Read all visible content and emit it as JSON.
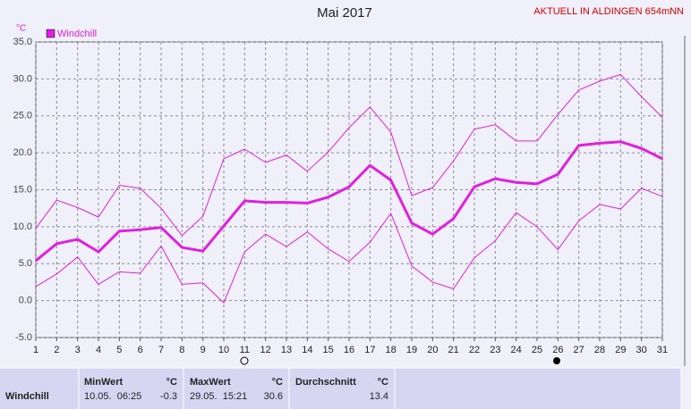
{
  "chart_data": {
    "type": "line",
    "title": "Mai 2017",
    "subtitle": "AKTUELL IN ALDINGEN 654mNN",
    "y_label": "°C",
    "x": [
      1,
      2,
      3,
      4,
      5,
      6,
      7,
      8,
      9,
      10,
      11,
      12,
      13,
      14,
      15,
      16,
      17,
      18,
      19,
      20,
      21,
      22,
      23,
      24,
      25,
      26,
      27,
      28,
      29,
      30,
      31
    ],
    "xlim": [
      1,
      31
    ],
    "xticks": [
      1,
      2,
      3,
      4,
      5,
      6,
      7,
      8,
      9,
      10,
      11,
      12,
      13,
      14,
      15,
      16,
      17,
      18,
      19,
      20,
      21,
      22,
      23,
      24,
      25,
      26,
      27,
      28,
      29,
      30,
      31
    ],
    "ylim": [
      -5,
      35
    ],
    "yticks": [
      {
        "value": -5,
        "label": "-5.0"
      },
      {
        "value": 0,
        "label": "0.0"
      },
      {
        "value": 5,
        "label": "5.0"
      },
      {
        "value": 10,
        "label": "10.0"
      },
      {
        "value": 15,
        "label": "15.0"
      },
      {
        "value": 20,
        "label": "20.0"
      },
      {
        "value": 25,
        "label": "25.0"
      },
      {
        "value": 30,
        "label": "30.0"
      },
      {
        "value": 35,
        "label": "35.0"
      }
    ],
    "grid": true,
    "legend": "top-left",
    "series": [
      {
        "name": "Windchill",
        "color": "#e020e0",
        "values": [
          5.4,
          7.7,
          8.3,
          6.6,
          9.4,
          9.6,
          9.9,
          7.2,
          6.7,
          10.1,
          13.5,
          13.3,
          13.3,
          13.2,
          14.0,
          15.4,
          18.3,
          16.3,
          10.5,
          9.0,
          11.1,
          15.4,
          16.5,
          16.0,
          15.8,
          17.1,
          21.0,
          21.3,
          21.5,
          20.6,
          19.2
        ]
      },
      {
        "color": "#e020e0",
        "values": [
          9.8,
          13.6,
          12.6,
          11.3,
          15.6,
          15.2,
          12.5,
          8.8,
          11.4,
          19.2,
          20.5,
          18.7,
          19.7,
          17.5,
          20.1,
          23.4,
          26.2,
          22.8,
          14.2,
          15.3,
          18.9,
          23.2,
          23.8,
          21.6,
          21.6,
          25.2,
          28.5,
          29.7,
          30.6,
          27.6,
          24.8
        ]
      },
      {
        "color": "#e020e0",
        "values": [
          1.9,
          3.6,
          5.9,
          2.2,
          3.9,
          3.7,
          7.4,
          2.2,
          2.4,
          -0.3,
          6.6,
          9.0,
          7.3,
          9.3,
          7.0,
          5.3,
          7.9,
          11.8,
          4.7,
          2.5,
          1.6,
          5.8,
          8.1,
          11.9,
          10.0,
          6.9,
          10.8,
          13.0,
          12.4,
          15.2,
          14.1
        ]
      }
    ]
  },
  "stats_table": {
    "headers": [
      "MinWert",
      "°C",
      "MaxWert",
      "°C",
      "Durchschnitt",
      "°C"
    ],
    "rows": [
      [
        "Windchill",
        "10.05.  06:25",
        "-0.3",
        "29.05.  15:21",
        "30.6",
        "13.4"
      ]
    ]
  }
}
